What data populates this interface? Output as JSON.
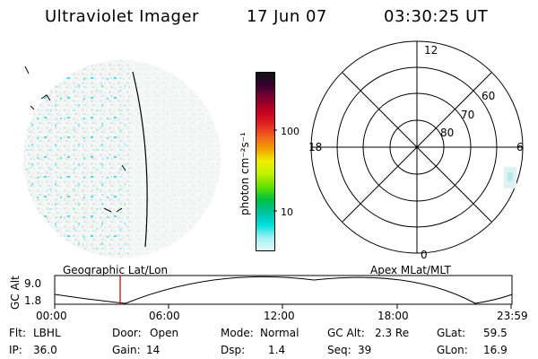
{
  "header": {
    "title": "Ultraviolet Imager",
    "date": "17 Jun 07",
    "time": "03:30:25 UT"
  },
  "colorbar": {
    "unit_label": "photon cm⁻²s⁻¹",
    "ticks": [
      "100",
      "10"
    ],
    "colors": [
      "#101010",
      "#3a0030",
      "#800030",
      "#c00020",
      "#e02020",
      "#f06020",
      "#f0a000",
      "#f0f000",
      "#c0f000",
      "#60e000",
      "#00c040",
      "#00c0a0",
      "#00e0e0",
      "#a0f0f0",
      "#e0f8f8"
    ]
  },
  "polar_plot": {
    "mlt_labels": [
      "12",
      "18",
      "6",
      "0"
    ],
    "lat_labels": [
      "60",
      "70",
      "80"
    ]
  },
  "altitude_plot": {
    "ylabel": "GC Alt",
    "yticks": [
      "9.0",
      "1.8"
    ],
    "left_title": "Geographic Lat/Lon",
    "right_title": "Apex MLat/MLT",
    "xticks": [
      "00:00",
      "06:00",
      "12:00",
      "18:00",
      "23:59"
    ],
    "marker_color": "#cc0000"
  },
  "status": {
    "flt_label": "Flt:",
    "flt_value": "LBHL",
    "ip_label": "IP:",
    "ip_value": "36.0",
    "door_label": "Door:",
    "door_value": "Open",
    "gain_label": "Gain:",
    "gain_value": "14",
    "mode_label": "Mode:",
    "mode_value": "Normal",
    "dsp_label": "Dsp:",
    "dsp_value": "1.4",
    "gcalt_label": "GC Alt:",
    "gcalt_value": "2.3 Re",
    "seq_label": "Seq:",
    "seq_value": "39",
    "glat_label": "GLat:",
    "glat_value": "59.5",
    "glon_label": "GLon:",
    "glon_value": "16.9"
  }
}
